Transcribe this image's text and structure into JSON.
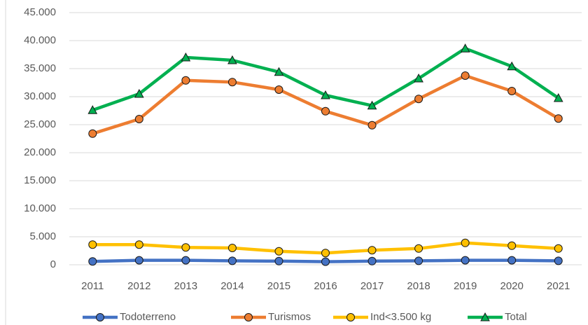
{
  "chart_data": {
    "type": "line",
    "categories": [
      "2011",
      "2012",
      "2013",
      "2014",
      "2015",
      "2016",
      "2017",
      "2018",
      "2019",
      "2020",
      "2021"
    ],
    "series": [
      {
        "name": "Todoterreno",
        "color": "#4472c4",
        "marker": "circle",
        "values": [
          600,
          800,
          800,
          700,
          650,
          550,
          650,
          700,
          800,
          800,
          700
        ]
      },
      {
        "name": "Turismos",
        "color": "#ed7d31",
        "marker": "circle",
        "values": [
          23400,
          26000,
          32900,
          32600,
          31250,
          27400,
          24900,
          29600,
          33750,
          31000,
          26100
        ]
      },
      {
        "name": "Ind<3.500 kg",
        "color": "#ffc000",
        "marker": "circle",
        "values": [
          3600,
          3600,
          3100,
          3000,
          2400,
          2100,
          2600,
          2900,
          3900,
          3400,
          2900
        ]
      },
      {
        "name": "Total",
        "color": "#00b050",
        "marker": "triangle",
        "values": [
          27600,
          30500,
          37000,
          36500,
          34400,
          30250,
          28400,
          33250,
          38600,
          35400,
          29750
        ]
      }
    ],
    "ylim": [
      0,
      45000
    ],
    "yticks": [
      0,
      {
        "value": 5000,
        "label": "5.000"
      },
      {
        "value": 10000,
        "label": "10.000"
      },
      {
        "value": 15000,
        "label": "15.000"
      },
      {
        "value": 20000,
        "label": "20.000"
      },
      {
        "value": 25000,
        "label": "25.000"
      },
      {
        "value": 30000,
        "label": "30.000"
      },
      {
        "value": 35000,
        "label": "35.000"
      },
      {
        "value": 40000,
        "label": "40.000"
      },
      {
        "value": 45000,
        "label": "45.000"
      }
    ],
    "grid": true,
    "legend": "bottom"
  }
}
